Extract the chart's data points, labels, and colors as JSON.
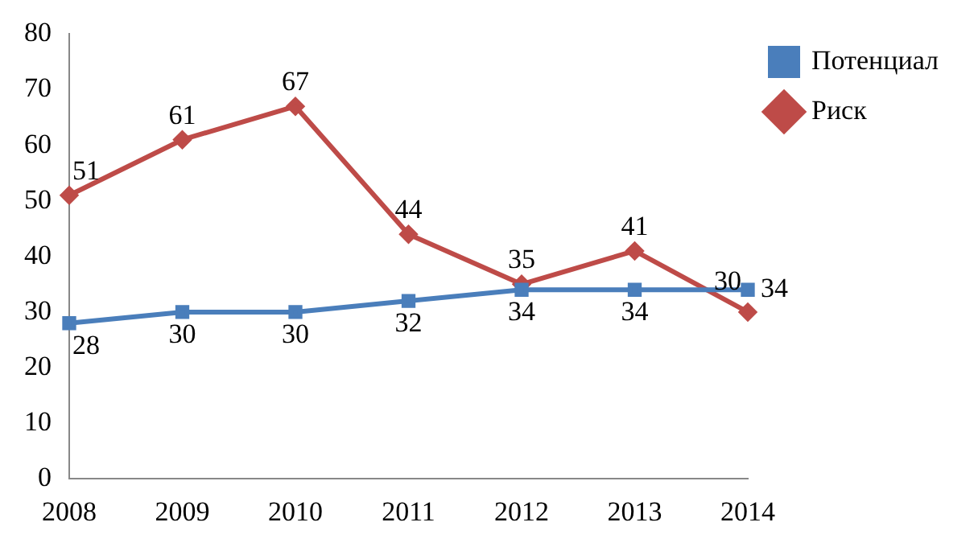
{
  "chart_data": {
    "type": "line",
    "categories": [
      "2008",
      "2009",
      "2010",
      "2011",
      "2012",
      "2013",
      "2014"
    ],
    "series": [
      {
        "name": "Потенциал",
        "color": "#4a7ebb",
        "marker": "square",
        "values": [
          28,
          30,
          30,
          32,
          34,
          34,
          34
        ]
      },
      {
        "name": "Риск",
        "color": "#be4b48",
        "marker": "diamond",
        "values": [
          51,
          61,
          67,
          44,
          35,
          41,
          30
        ]
      }
    ],
    "ylim": [
      0,
      80
    ],
    "yticks": [
      0,
      10,
      20,
      30,
      40,
      50,
      60,
      70,
      80
    ],
    "data_labels": true,
    "legend": "top right",
    "grid": false
  }
}
